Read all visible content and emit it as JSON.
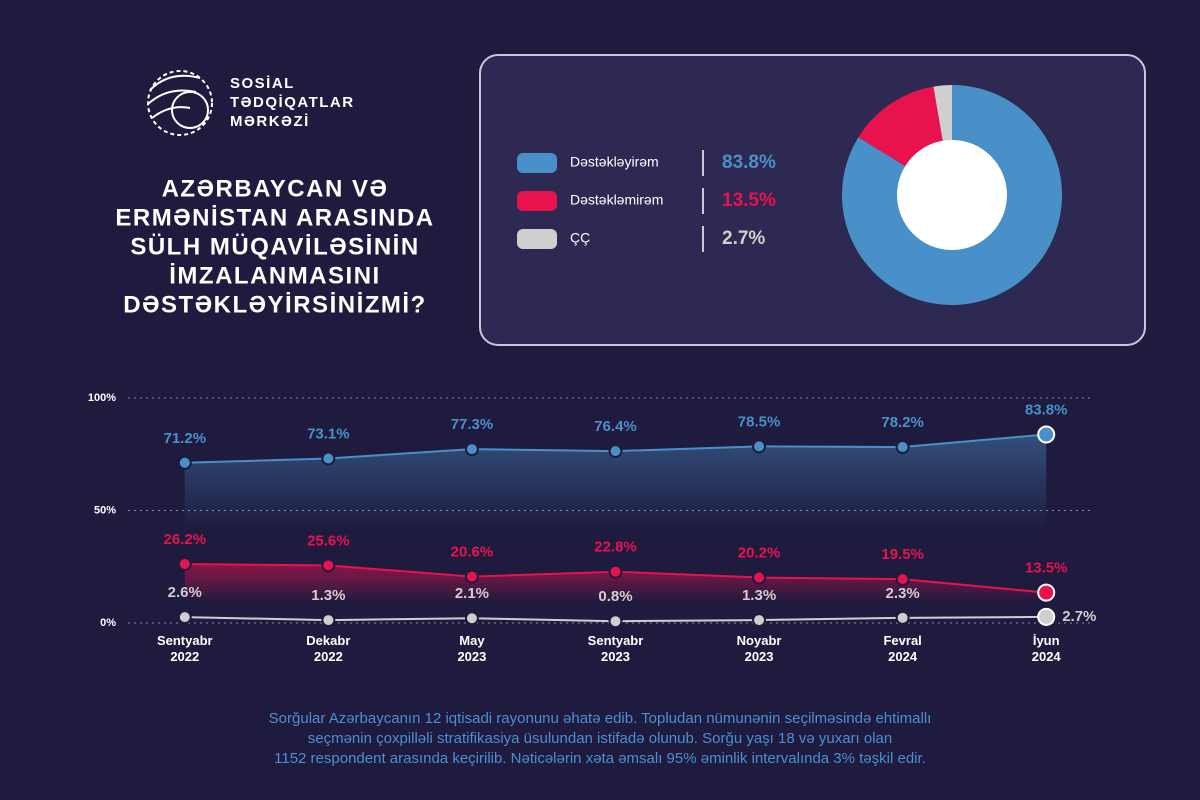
{
  "logo": {
    "lines": [
      "SOSİAL",
      "TƏDQİQATLAR",
      "MƏRKƏZİ"
    ]
  },
  "title": [
    "AZƏRBAYCAN VƏ",
    "ERMƏNİSTAN ARASINDA",
    "SÜLH MÜQAVİLƏSİNİN",
    "İMZALANMASINI",
    "DƏSTƏKLƏYİRSİNİZMİ?"
  ],
  "chart_data": [
    {
      "type": "pie",
      "donut": true,
      "categories": [
        "Dəstəkləyirəm",
        "Dəstəkləmirəm",
        "ÇÇ"
      ],
      "values": [
        83.8,
        13.5,
        2.7
      ],
      "value_labels": [
        "83.8%",
        "13.5%",
        "2.7%"
      ],
      "colors": [
        "#4a90c8",
        "#e8124f",
        "#cfcfcf"
      ]
    },
    {
      "type": "line",
      "categories": [
        "Sentyabr\n2022",
        "Dekabr\n2022",
        "May\n2023",
        "Sentyabr\n2023",
        "Noyabr\n2023",
        "Fevral\n2024",
        "İyun\n2024"
      ],
      "ylim": [
        0,
        100
      ],
      "yticks": [
        {
          "value": 0,
          "label": "0%"
        },
        {
          "value": 50,
          "label": "50%"
        },
        {
          "value": 100,
          "label": "100%"
        }
      ],
      "grid": true,
      "series": [
        {
          "color": "#4a90c8",
          "values": [
            71.2,
            73.1,
            77.3,
            76.4,
            78.5,
            78.2,
            83.8
          ],
          "value_labels": [
            "71.2%",
            "73.1%",
            "77.3%",
            "76.4%",
            "78.5%",
            "78.2%",
            "83.8%"
          ]
        },
        {
          "color": "#e8124f",
          "values": [
            26.2,
            25.6,
            20.6,
            22.8,
            20.2,
            19.5,
            13.5
          ],
          "value_labels": [
            "26.2%",
            "25.6%",
            "20.6%",
            "22.8%",
            "20.2%",
            "19.5%",
            "13.5%"
          ]
        },
        {
          "color": "#cfcfcf",
          "values": [
            2.6,
            1.3,
            2.1,
            0.8,
            1.3,
            2.3,
            2.7
          ],
          "value_labels": [
            "2.6%",
            "1.3%",
            "2.1%",
            "0.8%",
            "1.3%",
            "2.3%",
            "2.7%"
          ]
        }
      ]
    }
  ],
  "footnote": [
    "Sorğular Azərbaycanın 12 iqtisadi rayonunu əhatə edib. Topludan nümunənin seçilməsində ehtimallı",
    "seçmənin çoxpilləli stratifikasiya üsulundan istifadə olunub. Sorğu yaşı 18 və yuxarı olan",
    "1152 respondent arasında keçirilib. Nəticələrin xəta əmsalı 95% əminlik intervalında 3% təşkil edir."
  ]
}
